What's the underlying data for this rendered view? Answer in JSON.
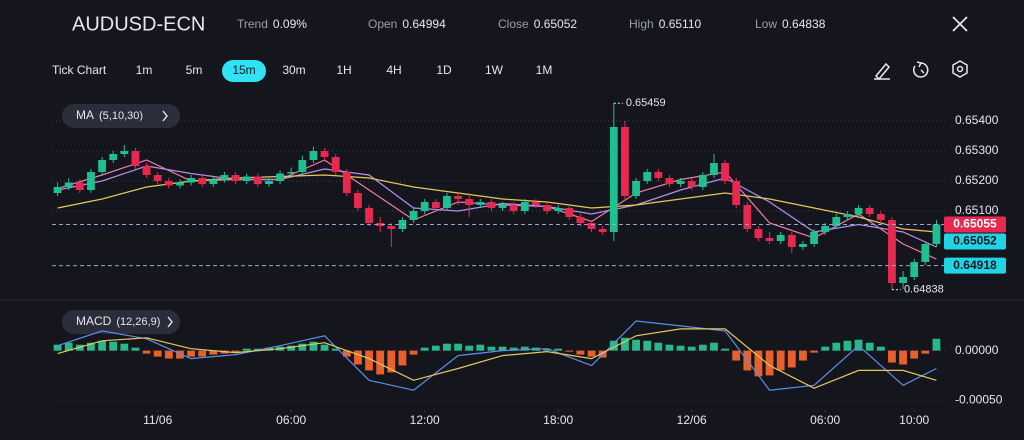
{
  "header": {
    "symbol": "AUDUSD-ECN",
    "stats": [
      {
        "label": "Trend",
        "value": "0.09%"
      },
      {
        "label": "Open",
        "value": "0.64994"
      },
      {
        "label": "Close",
        "value": "0.65052"
      },
      {
        "label": "High",
        "value": "0.65110"
      },
      {
        "label": "Low",
        "value": "0.64838"
      }
    ]
  },
  "toolbar": {
    "label": "Tick Chart",
    "timeframes": [
      "1m",
      "5m",
      "15m",
      "30m",
      "1H",
      "4H",
      "1D",
      "1W",
      "1M"
    ],
    "active": "15m"
  },
  "chart_data": [
    {
      "type": "candlestick",
      "indicator": "MA",
      "indicator_params": "(5,10,30)",
      "up_color": "#1fc08f",
      "down_color": "#e8294f",
      "xlim": [
        -0.5,
        79.5
      ],
      "ylim": [
        0.6482,
        0.6547
      ],
      "grid": true,
      "yticks": [
        {
          "value": 0.654,
          "label": "0.65400"
        },
        {
          "value": 0.653,
          "label": "0.65300"
        },
        {
          "value": 0.652,
          "label": "0.65200"
        },
        {
          "value": 0.651,
          "label": "0.65100"
        }
      ],
      "candles": [
        [
          0.6516,
          0.65195,
          0.6515,
          0.6518
        ],
        [
          0.6518,
          0.6521,
          0.6517,
          0.65195
        ],
        [
          0.65195,
          0.65205,
          0.6516,
          0.6517
        ],
        [
          0.6517,
          0.6524,
          0.6516,
          0.6523
        ],
        [
          0.6523,
          0.6528,
          0.6522,
          0.6527
        ],
        [
          0.6527,
          0.653,
          0.6526,
          0.6529
        ],
        [
          0.6529,
          0.6532,
          0.6528,
          0.653
        ],
        [
          0.653,
          0.6531,
          0.6524,
          0.6525
        ],
        [
          0.6525,
          0.6526,
          0.6521,
          0.6522
        ],
        [
          0.6522,
          0.6523,
          0.6519,
          0.652
        ],
        [
          0.652,
          0.6521,
          0.65175,
          0.65185
        ],
        [
          0.65185,
          0.65205,
          0.65175,
          0.65195
        ],
        [
          0.65195,
          0.6522,
          0.65185,
          0.6521
        ],
        [
          0.6521,
          0.6522,
          0.6518,
          0.6519
        ],
        [
          0.6519,
          0.65215,
          0.6518,
          0.65205
        ],
        [
          0.65205,
          0.6523,
          0.65195,
          0.6522
        ],
        [
          0.6522,
          0.6523,
          0.6519,
          0.652
        ],
        [
          0.652,
          0.65225,
          0.6519,
          0.65215
        ],
        [
          0.65215,
          0.65225,
          0.6518,
          0.6519
        ],
        [
          0.6519,
          0.6521,
          0.6518,
          0.652
        ],
        [
          0.652,
          0.65235,
          0.6519,
          0.65225
        ],
        [
          0.65225,
          0.65245,
          0.65215,
          0.6523
        ],
        [
          0.6523,
          0.65285,
          0.6522,
          0.6527
        ],
        [
          0.6527,
          0.65315,
          0.6526,
          0.653
        ],
        [
          0.653,
          0.6531,
          0.6527,
          0.6528
        ],
        [
          0.6528,
          0.6529,
          0.6522,
          0.6523
        ],
        [
          0.6523,
          0.6524,
          0.6515,
          0.6516
        ],
        [
          0.6516,
          0.6517,
          0.651,
          0.6511
        ],
        [
          0.6511,
          0.6512,
          0.6505,
          0.6506
        ],
        [
          0.6506,
          0.6508,
          0.6503,
          0.6505
        ],
        [
          0.6505,
          0.6506,
          0.6498,
          0.6504
        ],
        [
          0.6504,
          0.6508,
          0.6503,
          0.6507
        ],
        [
          0.6507,
          0.6511,
          0.6506,
          0.651
        ],
        [
          0.651,
          0.6514,
          0.6509,
          0.6513
        ],
        [
          0.6513,
          0.6514,
          0.651,
          0.6511
        ],
        [
          0.6511,
          0.6516,
          0.651,
          0.6515
        ],
        [
          0.6515,
          0.6516,
          0.6512,
          0.6514
        ],
        [
          0.6514,
          0.6515,
          0.6508,
          0.6512
        ],
        [
          0.6512,
          0.6514,
          0.6511,
          0.6513
        ],
        [
          0.6513,
          0.6514,
          0.651,
          0.6511
        ],
        [
          0.6511,
          0.6513,
          0.651,
          0.6512
        ],
        [
          0.6512,
          0.6513,
          0.6509,
          0.651
        ],
        [
          0.651,
          0.6514,
          0.6509,
          0.6513
        ],
        [
          0.6513,
          0.6514,
          0.6511,
          0.6512
        ],
        [
          0.6512,
          0.6513,
          0.6509,
          0.651
        ],
        [
          0.651,
          0.6512,
          0.6509,
          0.6511
        ],
        [
          0.6511,
          0.6512,
          0.6507,
          0.6508
        ],
        [
          0.6508,
          0.6509,
          0.6505,
          0.6506
        ],
        [
          0.6506,
          0.6507,
          0.6503,
          0.6504
        ],
        [
          0.6504,
          0.6505,
          0.6502,
          0.6503
        ],
        [
          0.6503,
          0.65459,
          0.65,
          0.6538
        ],
        [
          0.6538,
          0.654,
          0.6514,
          0.6515
        ],
        [
          0.6515,
          0.6521,
          0.6514,
          0.652
        ],
        [
          0.652,
          0.6524,
          0.6519,
          0.6523
        ],
        [
          0.6523,
          0.6524,
          0.652,
          0.6521
        ],
        [
          0.6521,
          0.6522,
          0.6518,
          0.6519
        ],
        [
          0.6519,
          0.6521,
          0.6518,
          0.652
        ],
        [
          0.652,
          0.6521,
          0.6517,
          0.6518
        ],
        [
          0.6518,
          0.6523,
          0.6517,
          0.6522
        ],
        [
          0.6522,
          0.6529,
          0.6521,
          0.6526
        ],
        [
          0.6526,
          0.6527,
          0.6519,
          0.652
        ],
        [
          0.652,
          0.6521,
          0.6511,
          0.6512
        ],
        [
          0.6512,
          0.6513,
          0.6503,
          0.6504
        ],
        [
          0.6504,
          0.6505,
          0.65,
          0.6501
        ],
        [
          0.6501,
          0.6503,
          0.6499,
          0.65
        ],
        [
          0.65,
          0.6503,
          0.6499,
          0.6502
        ],
        [
          0.6502,
          0.6503,
          0.6496,
          0.6498
        ],
        [
          0.6498,
          0.65,
          0.6497,
          0.6499
        ],
        [
          0.6499,
          0.6504,
          0.6498,
          0.6503
        ],
        [
          0.6503,
          0.6506,
          0.6502,
          0.6505
        ],
        [
          0.6505,
          0.6509,
          0.6504,
          0.6508
        ],
        [
          0.6508,
          0.651,
          0.6507,
          0.6509
        ],
        [
          0.6509,
          0.6512,
          0.6508,
          0.6511
        ],
        [
          0.6511,
          0.6512,
          0.6508,
          0.6509
        ],
        [
          0.6509,
          0.651,
          0.6506,
          0.6507
        ],
        [
          0.6507,
          0.6508,
          0.64838,
          0.6486
        ],
        [
          0.6486,
          0.649,
          0.6484,
          0.6488
        ],
        [
          0.6488,
          0.6494,
          0.6487,
          0.6493
        ],
        [
          0.6493,
          0.65,
          0.6492,
          0.6499
        ],
        [
          0.6499,
          0.6507,
          0.6498,
          0.65055
        ]
      ],
      "x": [
        0,
        4,
        8,
        12,
        16,
        20,
        24,
        28,
        32,
        36,
        40,
        44,
        48,
        52,
        56,
        60,
        64,
        68,
        72,
        76,
        79
      ],
      "series": [
        {
          "color": "#f07aa8",
          "values": [
            0.65175,
            0.6522,
            0.6527,
            0.652,
            0.65205,
            0.65205,
            0.6527,
            0.6517,
            0.6507,
            0.6513,
            0.6512,
            0.65115,
            0.65065,
            0.6516,
            0.65205,
            0.6523,
            0.6506,
            0.6501,
            0.6509,
            0.6499,
            0.6494
          ]
        },
        {
          "color": "#b98cf0",
          "values": [
            0.6517,
            0.652,
            0.6525,
            0.65225,
            0.65205,
            0.65205,
            0.6524,
            0.6522,
            0.6511,
            0.651,
            0.65125,
            0.65115,
            0.6509,
            0.6512,
            0.6517,
            0.6521,
            0.6513,
            0.6503,
            0.65055,
            0.6503,
            0.6498
          ]
        },
        {
          "color": "#e6c85a",
          "values": [
            0.6511,
            0.6514,
            0.6518,
            0.652,
            0.6521,
            0.65215,
            0.6522,
            0.6521,
            0.6518,
            0.6516,
            0.6514,
            0.6513,
            0.6511,
            0.6512,
            0.6514,
            0.6516,
            0.6514,
            0.6511,
            0.6508,
            0.6504,
            0.6503
          ]
        }
      ],
      "price_lines": [
        {
          "value": 0.65055,
          "color": "#e8294f",
          "text_color": "#ffffff",
          "dashed": true
        },
        {
          "value": 0.65052,
          "color": "#22d3e6",
          "text_color": "#0e1a22",
          "dashed": false
        },
        {
          "value": 0.64918,
          "color": "#22d3e6",
          "text_color": "#0e1a22",
          "dashed": true
        }
      ],
      "annotations": [
        {
          "x": 50,
          "value": 0.65459
        },
        {
          "x": 75,
          "value": 0.64838
        }
      ]
    },
    {
      "type": "macd",
      "indicator": "MACD",
      "indicator_params": "(12,26,9)",
      "xlim": [
        -0.5,
        79.5
      ],
      "ylim": [
        -0.0006,
        0.00033
      ],
      "yticks": [
        {
          "value": 0,
          "label": "0.00000"
        },
        {
          "value": -0.0005,
          "label": "-0.00050"
        }
      ],
      "xticks": [
        {
          "value": 9,
          "label": "11/06"
        },
        {
          "value": 21,
          "label": "06:00"
        },
        {
          "value": 33,
          "label": "12:00"
        },
        {
          "value": 45,
          "label": "18:00"
        },
        {
          "value": 57,
          "label": "12/06"
        },
        {
          "value": 69,
          "label": "06:00"
        },
        {
          "value": 77,
          "label": "10:00"
        }
      ],
      "up_color": "#27b98a",
      "down_color": "#e8602c",
      "histogram": [
        6e-05,
        8e-05,
        6e-05,
        8e-05,
        0.0001,
        9e-05,
        7e-05,
        3e-05,
        -3e-05,
        -6e-05,
        -8e-05,
        -8e-05,
        -6e-05,
        -6e-05,
        -4e-05,
        -3e-05,
        -2e-05,
        2e-05,
        2e-05,
        3e-05,
        4e-05,
        5e-05,
        7e-05,
        9e-05,
        6e-05,
        2e-05,
        -6e-05,
        -0.00014,
        -0.0002,
        -0.00024,
        -0.00022,
        -0.00015,
        -4e-05,
        3e-05,
        5e-05,
        7e-05,
        7e-05,
        5e-05,
        6e-05,
        4e-05,
        4e-05,
        3e-05,
        4e-05,
        3e-05,
        2e-05,
        2e-05,
        -1e-05,
        -4e-05,
        -6e-05,
        -7e-05,
        0.0001,
        0.00013,
        0.00011,
        0.0001,
        8e-05,
        6e-05,
        5e-05,
        4e-05,
        6e-05,
        8e-05,
        2e-05,
        -0.0001,
        -0.0002,
        -0.00026,
        -0.00025,
        -0.0002,
        -0.00017,
        -0.0001,
        -2e-05,
        4e-05,
        8e-05,
        0.0001,
        0.00011,
        8e-05,
        4e-05,
        -0.00012,
        -0.00014,
        -8e-05,
        -3e-05,
        0.00012
      ],
      "x": [
        0,
        4,
        8,
        12,
        16,
        20,
        24,
        28,
        32,
        36,
        40,
        44,
        48,
        52,
        56,
        60,
        64,
        68,
        72,
        76,
        79
      ],
      "series": [
        {
          "color": "#5b8fe8",
          "values": [
            5e-05,
            0.0002,
            0.00012,
            -8e-05,
            -4e-05,
            5e-05,
            0.00015,
            -0.0003,
            -0.0004,
            -5e-05,
            0,
            2e-05,
            -0.00015,
            0.0003,
            0.00025,
            0.0002,
            -0.0004,
            -0.00035,
            5e-05,
            -0.00035,
            -0.00018
          ]
        },
        {
          "color": "#e6c85a",
          "values": [
            -3e-05,
            0.0001,
            0.00013,
            2e-05,
            -2e-05,
            2e-05,
            8e-05,
            -8e-05,
            -0.0003,
            -0.00018,
            -5e-05,
            -1e-05,
            -8e-05,
            0.00015,
            0.00022,
            0.00022,
            -0.00015,
            -0.00038,
            -0.0002,
            -0.0002,
            -0.0003
          ]
        }
      ]
    }
  ]
}
